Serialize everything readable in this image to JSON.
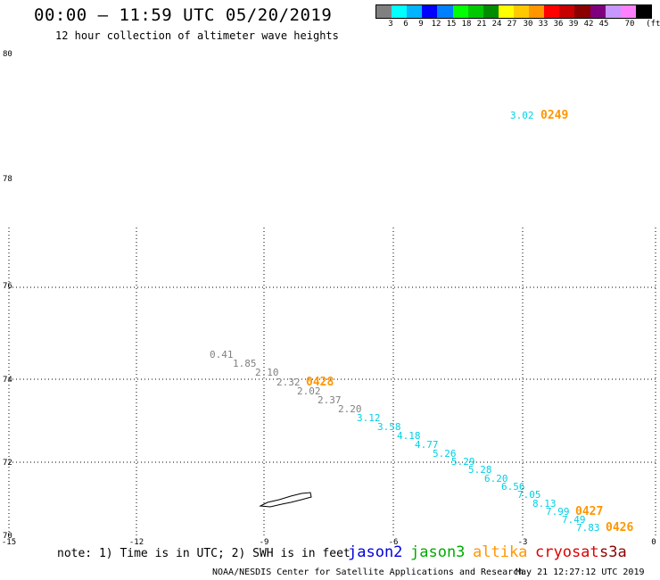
{
  "header": {
    "title": "00:00 – 11:59 UTC 05/20/2019",
    "subtitle": "12 hour collection of altimeter wave heights"
  },
  "legend": {
    "colors": [
      "#808080",
      "#00ffff",
      "#00b4ff",
      "#0000ff",
      "#0080ff",
      "#00ff00",
      "#00c800",
      "#008c00",
      "#ffff00",
      "#ffc800",
      "#ff9600",
      "#ff0000",
      "#c80000",
      "#8c0000",
      "#7f007f",
      "#c896ff",
      "#ff80ff",
      "#000000"
    ],
    "labels": [
      "3",
      "6",
      "9",
      "12",
      "15",
      "18",
      "21",
      "24",
      "27",
      "30",
      "33",
      "36",
      "39",
      "42",
      "45",
      "70",
      "(ft)"
    ]
  },
  "axes": {
    "lat_labels": [
      "80",
      "78",
      "76",
      "74",
      "72",
      "70"
    ],
    "lon_labels": [
      "-15",
      "-12",
      "-9",
      "-6",
      "-3",
      "0"
    ]
  },
  "wave_heights": {
    "gray_labels": [
      "0.41",
      "1.85",
      "2.10",
      "2.32",
      "2.02",
      "2.37",
      "2.20"
    ],
    "cyan_labels": [
      "3.12",
      "3.58",
      "4.18",
      "4.77",
      "5.26",
      "5.29",
      "5.28",
      "6.20",
      "6.56",
      "7.05",
      "8.13",
      "7.99",
      "7.49",
      "7.83",
      "3.02"
    ],
    "time_labels": [
      "0428",
      "0249",
      "0427",
      "0426"
    ],
    "gray_color": "#808080",
    "cyan_color": "#00d0e6",
    "time_color": "#ff9600"
  },
  "footer": {
    "note": "note: 1) Time is in UTC; 2) SWH is in feet",
    "satellites": [
      {
        "name": "jason2",
        "color": "#0000dd"
      },
      {
        "name": "jason3",
        "color": "#00aa00"
      },
      {
        "name": "altika",
        "color": "#ff9600"
      },
      {
        "name": "cryosat",
        "color": "#dd0000"
      },
      {
        "name": "s3a",
        "color": "#8b0000"
      }
    ],
    "credit": "NOAA/NESDIS Center for Satellite Applications and Research",
    "timestamp": "May 21 12:27:12 UTC 2019"
  }
}
